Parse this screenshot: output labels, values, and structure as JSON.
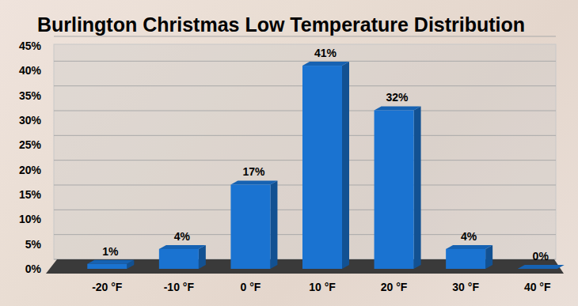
{
  "chart_data": {
    "type": "bar",
    "title": "Burlington Christmas Low Temperature Distribution",
    "categories": [
      "-20 °F",
      "-10 °F",
      "0 °F",
      "10 °F",
      "20 °F",
      "30 °F",
      "40 °F"
    ],
    "values": [
      1,
      4,
      17,
      41,
      32,
      4,
      0
    ],
    "value_labels": [
      "1%",
      "4%",
      "17%",
      "41%",
      "32%",
      "4%",
      "0%"
    ],
    "color": "#1a73d1",
    "ylim": [
      0,
      45
    ],
    "yticks": [
      {
        "value": 0,
        "label": "0%"
      },
      {
        "value": 5,
        "label": "5%"
      },
      {
        "value": 10,
        "label": "10%"
      },
      {
        "value": 15,
        "label": "15%"
      },
      {
        "value": 20,
        "label": "20%"
      },
      {
        "value": 25,
        "label": "25%"
      },
      {
        "value": 30,
        "label": "30%"
      },
      {
        "value": 35,
        "label": "35%"
      },
      {
        "value": 40,
        "label": "40%"
      },
      {
        "value": 45,
        "label": "45%"
      }
    ],
    "grid": true,
    "data_labels": true
  }
}
